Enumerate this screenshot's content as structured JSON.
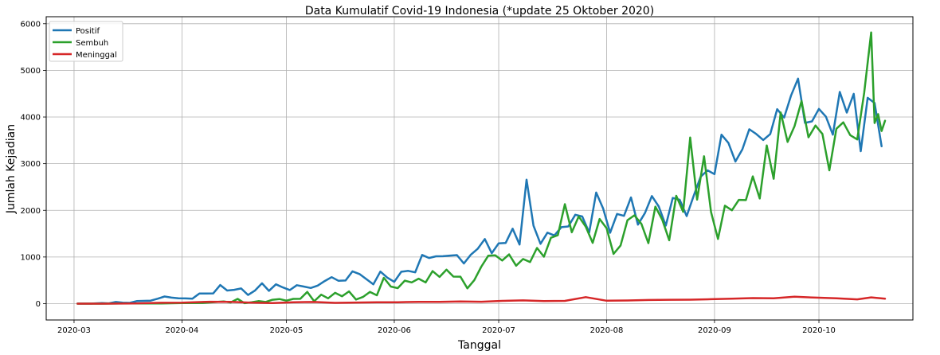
{
  "chart_data": {
    "type": "line",
    "title": "Data Kumulatif Covid-19 Indonesia (*update 25 Oktober 2020)",
    "xlabel": "Tanggal",
    "ylabel": "Jumlah Kejadian",
    "x_range": [
      "2020-02-22",
      "2020-10-28"
    ],
    "ylim": [
      -350,
      6150
    ],
    "grid": true,
    "legend_position": "top-left",
    "x_ticks": [
      {
        "date": "2020-03-01",
        "label": "2020-03"
      },
      {
        "date": "2020-04-01",
        "label": "2020-04"
      },
      {
        "date": "2020-05-01",
        "label": "2020-05"
      },
      {
        "date": "2020-06-01",
        "label": "2020-06"
      },
      {
        "date": "2020-07-01",
        "label": "2020-07"
      },
      {
        "date": "2020-08-01",
        "label": "2020-08"
      },
      {
        "date": "2020-09-01",
        "label": "2020-09"
      },
      {
        "date": "2020-10-01",
        "label": "2020-10"
      }
    ],
    "y_ticks": [
      0,
      1000,
      2000,
      3000,
      4000,
      5000,
      6000
    ],
    "series": [
      {
        "name": "Positif",
        "color": "#1f77b4",
        "points": [
          [
            "2020-03-02",
            2
          ],
          [
            "2020-03-06",
            2
          ],
          [
            "2020-03-09",
            13
          ],
          [
            "2020-03-11",
            7
          ],
          [
            "2020-03-13",
            35
          ],
          [
            "2020-03-15",
            21
          ],
          [
            "2020-03-17",
            17
          ],
          [
            "2020-03-19",
            55
          ],
          [
            "2020-03-21",
            60
          ],
          [
            "2020-03-23",
            64
          ],
          [
            "2020-03-25",
            105
          ],
          [
            "2020-03-27",
            153
          ],
          [
            "2020-03-29",
            130
          ],
          [
            "2020-03-31",
            114
          ],
          [
            "2020-04-02",
            113
          ],
          [
            "2020-04-04",
            106
          ],
          [
            "2020-04-06",
            218
          ],
          [
            "2020-04-08",
            218
          ],
          [
            "2020-04-10",
            219
          ],
          [
            "2020-04-12",
            399
          ],
          [
            "2020-04-14",
            282
          ],
          [
            "2020-04-16",
            297
          ],
          [
            "2020-04-18",
            325
          ],
          [
            "2020-04-20",
            185
          ],
          [
            "2020-04-22",
            283
          ],
          [
            "2020-04-24",
            436
          ],
          [
            "2020-04-26",
            275
          ],
          [
            "2020-04-28",
            415
          ],
          [
            "2020-04-30",
            347
          ],
          [
            "2020-05-02",
            292
          ],
          [
            "2020-05-04",
            395
          ],
          [
            "2020-05-06",
            367
          ],
          [
            "2020-05-08",
            336
          ],
          [
            "2020-05-10",
            387
          ],
          [
            "2020-05-12",
            484
          ],
          [
            "2020-05-14",
            568
          ],
          [
            "2020-05-16",
            490
          ],
          [
            "2020-05-18",
            496
          ],
          [
            "2020-05-20",
            693
          ],
          [
            "2020-05-22",
            634
          ],
          [
            "2020-05-24",
            526
          ],
          [
            "2020-05-26",
            415
          ],
          [
            "2020-05-28",
            687
          ],
          [
            "2020-05-30",
            557
          ],
          [
            "2020-06-01",
            467
          ],
          [
            "2020-06-03",
            684
          ],
          [
            "2020-06-05",
            703
          ],
          [
            "2020-06-07",
            672
          ],
          [
            "2020-06-09",
            1043
          ],
          [
            "2020-06-11",
            979
          ],
          [
            "2020-06-13",
            1014
          ],
          [
            "2020-06-15",
            1017
          ],
          [
            "2020-06-17",
            1031
          ],
          [
            "2020-06-19",
            1041
          ],
          [
            "2020-06-21",
            862
          ],
          [
            "2020-06-23",
            1051
          ],
          [
            "2020-06-25",
            1178
          ],
          [
            "2020-06-27",
            1385
          ],
          [
            "2020-06-29",
            1082
          ],
          [
            "2020-07-01",
            1293
          ],
          [
            "2020-07-03",
            1301
          ],
          [
            "2020-07-05",
            1607
          ],
          [
            "2020-07-07",
            1268
          ],
          [
            "2020-07-09",
            2657
          ],
          [
            "2020-07-11",
            1671
          ],
          [
            "2020-07-13",
            1282
          ],
          [
            "2020-07-15",
            1522
          ],
          [
            "2020-07-17",
            1462
          ],
          [
            "2020-07-19",
            1639
          ],
          [
            "2020-07-21",
            1655
          ],
          [
            "2020-07-23",
            1906
          ],
          [
            "2020-07-25",
            1868
          ],
          [
            "2020-07-27",
            1525
          ],
          [
            "2020-07-29",
            2381
          ],
          [
            "2020-07-31",
            2040
          ],
          [
            "2020-08-02",
            1519
          ],
          [
            "2020-08-04",
            1922
          ],
          [
            "2020-08-06",
            1882
          ],
          [
            "2020-08-08",
            2277
          ],
          [
            "2020-08-10",
            1693
          ],
          [
            "2020-08-12",
            1942
          ],
          [
            "2020-08-14",
            2307
          ],
          [
            "2020-08-16",
            2081
          ],
          [
            "2020-08-18",
            1673
          ],
          [
            "2020-08-20",
            2266
          ],
          [
            "2020-08-22",
            2227
          ],
          [
            "2020-08-24",
            1877
          ],
          [
            "2020-08-26",
            2306
          ],
          [
            "2020-08-28",
            2719
          ],
          [
            "2020-08-30",
            2858
          ],
          [
            "2020-09-01",
            2775
          ],
          [
            "2020-09-03",
            3622
          ],
          [
            "2020-09-05",
            3444
          ],
          [
            "2020-09-07",
            3046
          ],
          [
            "2020-09-09",
            3307
          ],
          [
            "2020-09-11",
            3737
          ],
          [
            "2020-09-13",
            3636
          ],
          [
            "2020-09-15",
            3507
          ],
          [
            "2020-09-17",
            3635
          ],
          [
            "2020-09-19",
            4168
          ],
          [
            "2020-09-21",
            3989
          ],
          [
            "2020-09-23",
            4465
          ],
          [
            "2020-09-25",
            4823
          ],
          [
            "2020-09-27",
            3874
          ],
          [
            "2020-09-29",
            3906
          ],
          [
            "2020-10-01",
            4174
          ],
          [
            "2020-10-03",
            4007
          ],
          [
            "2020-10-05",
            3622
          ],
          [
            "2020-10-07",
            4538
          ],
          [
            "2020-10-09",
            4094
          ],
          [
            "2020-10-11",
            4497
          ],
          [
            "2020-10-13",
            3267
          ],
          [
            "2020-10-15",
            4411
          ],
          [
            "2020-10-17",
            4301
          ],
          [
            "2020-10-19",
            3373
          ]
        ]
      },
      {
        "name": "Sembuh",
        "color": "#2ca02c",
        "points": [
          [
            "2020-03-02",
            0
          ],
          [
            "2020-03-08",
            0
          ],
          [
            "2020-03-14",
            5
          ],
          [
            "2020-03-20",
            3
          ],
          [
            "2020-03-26",
            5
          ],
          [
            "2020-04-01",
            12
          ],
          [
            "2020-04-07",
            15
          ],
          [
            "2020-04-13",
            45
          ],
          [
            "2020-04-15",
            25
          ],
          [
            "2020-04-17",
            102
          ],
          [
            "2020-04-19",
            10
          ],
          [
            "2020-04-21",
            31
          ],
          [
            "2020-04-23",
            55
          ],
          [
            "2020-04-25",
            35
          ],
          [
            "2020-04-27",
            83
          ],
          [
            "2020-04-29",
            98
          ],
          [
            "2020-05-01",
            65
          ],
          [
            "2020-05-03",
            102
          ],
          [
            "2020-05-05",
            103
          ],
          [
            "2020-05-07",
            253
          ],
          [
            "2020-05-09",
            51
          ],
          [
            "2020-05-11",
            192
          ],
          [
            "2020-05-13",
            114
          ],
          [
            "2020-05-15",
            232
          ],
          [
            "2020-05-17",
            158
          ],
          [
            "2020-05-19",
            263
          ],
          [
            "2020-05-21",
            89
          ],
          [
            "2020-05-23",
            143
          ],
          [
            "2020-05-25",
            252
          ],
          [
            "2020-05-27",
            179
          ],
          [
            "2020-05-29",
            555
          ],
          [
            "2020-05-31",
            366
          ],
          [
            "2020-06-02",
            333
          ],
          [
            "2020-06-04",
            492
          ],
          [
            "2020-06-06",
            456
          ],
          [
            "2020-06-08",
            536
          ],
          [
            "2020-06-10",
            456
          ],
          [
            "2020-06-12",
            698
          ],
          [
            "2020-06-14",
            573
          ],
          [
            "2020-06-16",
            729
          ],
          [
            "2020-06-18",
            580
          ],
          [
            "2020-06-20",
            578
          ],
          [
            "2020-06-22",
            327
          ],
          [
            "2020-06-24",
            505
          ],
          [
            "2020-06-26",
            793
          ],
          [
            "2020-06-28",
            1027
          ],
          [
            "2020-06-30",
            1035
          ],
          [
            "2020-07-02",
            924
          ],
          [
            "2020-07-04",
            1055
          ],
          [
            "2020-07-06",
            814
          ],
          [
            "2020-07-08",
            957
          ],
          [
            "2020-07-10",
            892
          ],
          [
            "2020-07-12",
            1194
          ],
          [
            "2020-07-14",
            1007
          ],
          [
            "2020-07-16",
            1413
          ],
          [
            "2020-07-18",
            1468
          ],
          [
            "2020-07-20",
            2133
          ],
          [
            "2020-07-22",
            1530
          ],
          [
            "2020-07-24",
            1869
          ],
          [
            "2020-07-26",
            1649
          ],
          [
            "2020-07-28",
            1304
          ],
          [
            "2020-07-30",
            1815
          ],
          [
            "2020-08-01",
            1616
          ],
          [
            "2020-08-03",
            1066
          ],
          [
            "2020-08-05",
            1246
          ],
          [
            "2020-08-07",
            1790
          ],
          [
            "2020-08-09",
            1893
          ],
          [
            "2020-08-11",
            1709
          ],
          [
            "2020-08-13",
            1296
          ],
          [
            "2020-08-15",
            2079
          ],
          [
            "2020-08-17",
            1796
          ],
          [
            "2020-08-19",
            1360
          ],
          [
            "2020-08-21",
            2312
          ],
          [
            "2020-08-23",
            1969
          ],
          [
            "2020-08-25",
            3560
          ],
          [
            "2020-08-27",
            2230
          ],
          [
            "2020-08-29",
            3160
          ],
          [
            "2020-08-31",
            1964
          ],
          [
            "2020-09-02",
            1386
          ],
          [
            "2020-09-04",
            2100
          ],
          [
            "2020-09-06",
            2001
          ],
          [
            "2020-09-08",
            2224
          ],
          [
            "2020-09-10",
            2220
          ],
          [
            "2020-09-12",
            2728
          ],
          [
            "2020-09-14",
            2254
          ],
          [
            "2020-09-16",
            3391
          ],
          [
            "2020-09-18",
            2677
          ],
          [
            "2020-09-20",
            4097
          ],
          [
            "2020-09-22",
            3466
          ],
          [
            "2020-09-24",
            3805
          ],
          [
            "2020-09-26",
            4343
          ],
          [
            "2020-09-28",
            3565
          ],
          [
            "2020-09-30",
            3817
          ],
          [
            "2020-10-02",
            3637
          ],
          [
            "2020-10-04",
            2858
          ],
          [
            "2020-10-06",
            3748
          ],
          [
            "2020-10-08",
            3886
          ],
          [
            "2020-10-10",
            3612
          ],
          [
            "2020-10-12",
            3520
          ],
          [
            "2020-10-14",
            4516
          ],
          [
            "2020-10-16",
            5814
          ],
          [
            "2020-10-17",
            3870
          ],
          [
            "2020-10-18",
            4062
          ],
          [
            "2020-10-19",
            3700
          ],
          [
            "2020-10-20",
            3921
          ]
        ]
      },
      {
        "name": "Meninggal",
        "color": "#d62728",
        "points": [
          [
            "2020-03-02",
            0
          ],
          [
            "2020-03-10",
            0
          ],
          [
            "2020-03-18",
            5
          ],
          [
            "2020-03-26",
            18
          ],
          [
            "2020-04-01",
            22
          ],
          [
            "2020-04-09",
            40
          ],
          [
            "2020-04-15",
            37
          ],
          [
            "2020-04-21",
            20
          ],
          [
            "2020-04-27",
            13
          ],
          [
            "2020-05-03",
            31
          ],
          [
            "2020-05-09",
            35
          ],
          [
            "2020-05-15",
            16
          ],
          [
            "2020-05-21",
            24
          ],
          [
            "2020-05-27",
            28
          ],
          [
            "2020-06-02",
            31
          ],
          [
            "2020-06-08",
            39
          ],
          [
            "2020-06-14",
            38
          ],
          [
            "2020-06-20",
            45
          ],
          [
            "2020-06-26",
            41
          ],
          [
            "2020-07-02",
            59
          ],
          [
            "2020-07-08",
            70
          ],
          [
            "2020-07-14",
            54
          ],
          [
            "2020-07-20",
            59
          ],
          [
            "2020-07-26",
            139
          ],
          [
            "2020-08-01",
            63
          ],
          [
            "2020-08-07",
            68
          ],
          [
            "2020-08-13",
            79
          ],
          [
            "2020-08-19",
            83
          ],
          [
            "2020-08-25",
            85
          ],
          [
            "2020-08-31",
            95
          ],
          [
            "2020-09-06",
            106
          ],
          [
            "2020-09-12",
            120
          ],
          [
            "2020-09-18",
            114
          ],
          [
            "2020-09-24",
            148
          ],
          [
            "2020-09-30",
            129
          ],
          [
            "2020-10-06",
            116
          ],
          [
            "2020-10-12",
            92
          ],
          [
            "2020-10-16",
            135
          ],
          [
            "2020-10-20",
            105
          ]
        ]
      }
    ]
  }
}
